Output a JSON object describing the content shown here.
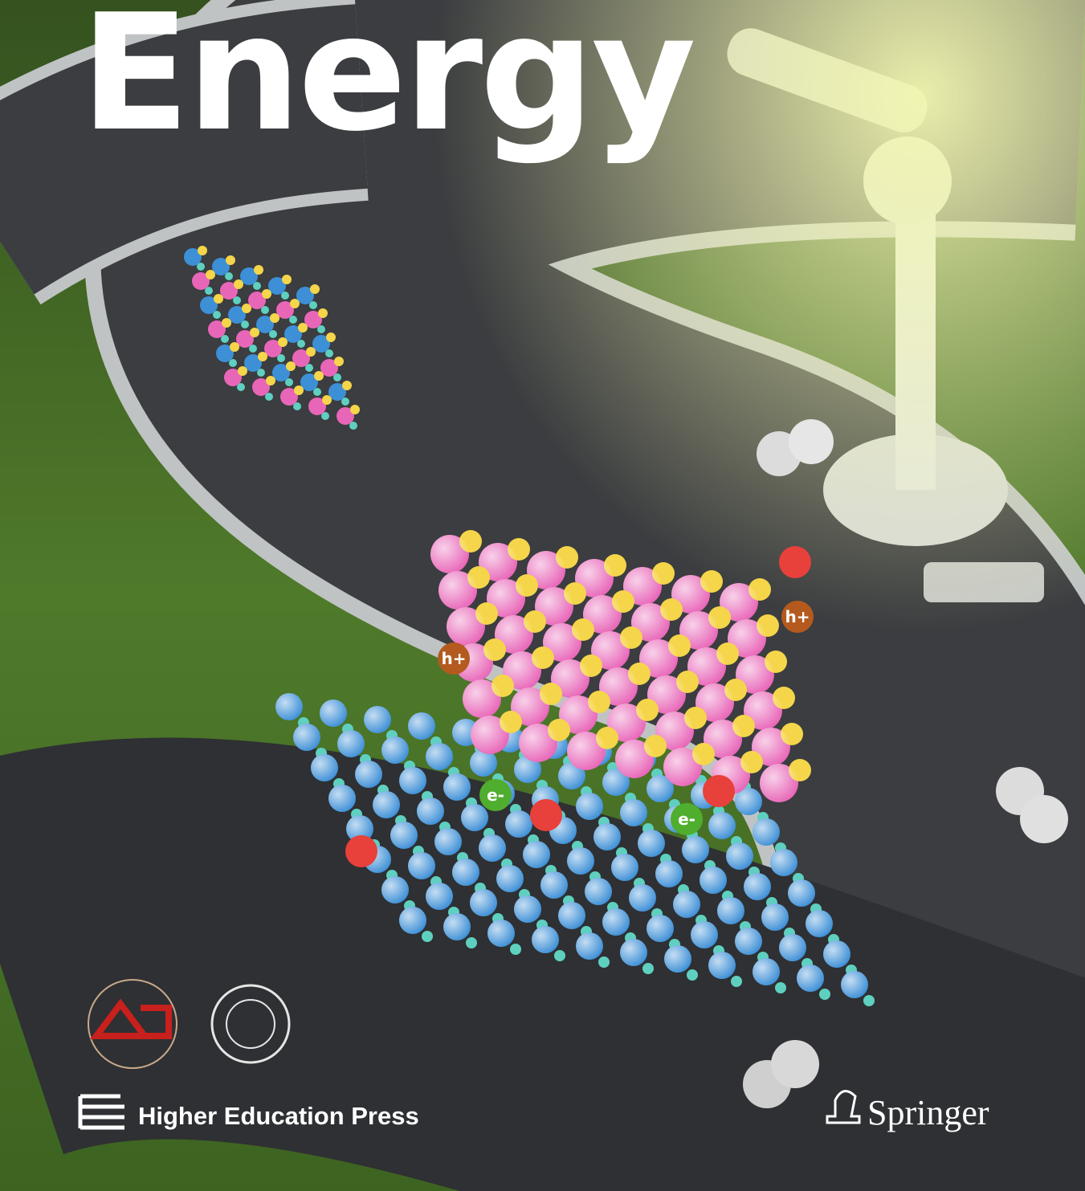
{
  "cover": {
    "title": "Energy",
    "charges": [
      "h+",
      "h+",
      "e-",
      "e-"
    ],
    "publishers": [
      "Higher Education Press",
      "Springer"
    ]
  }
}
